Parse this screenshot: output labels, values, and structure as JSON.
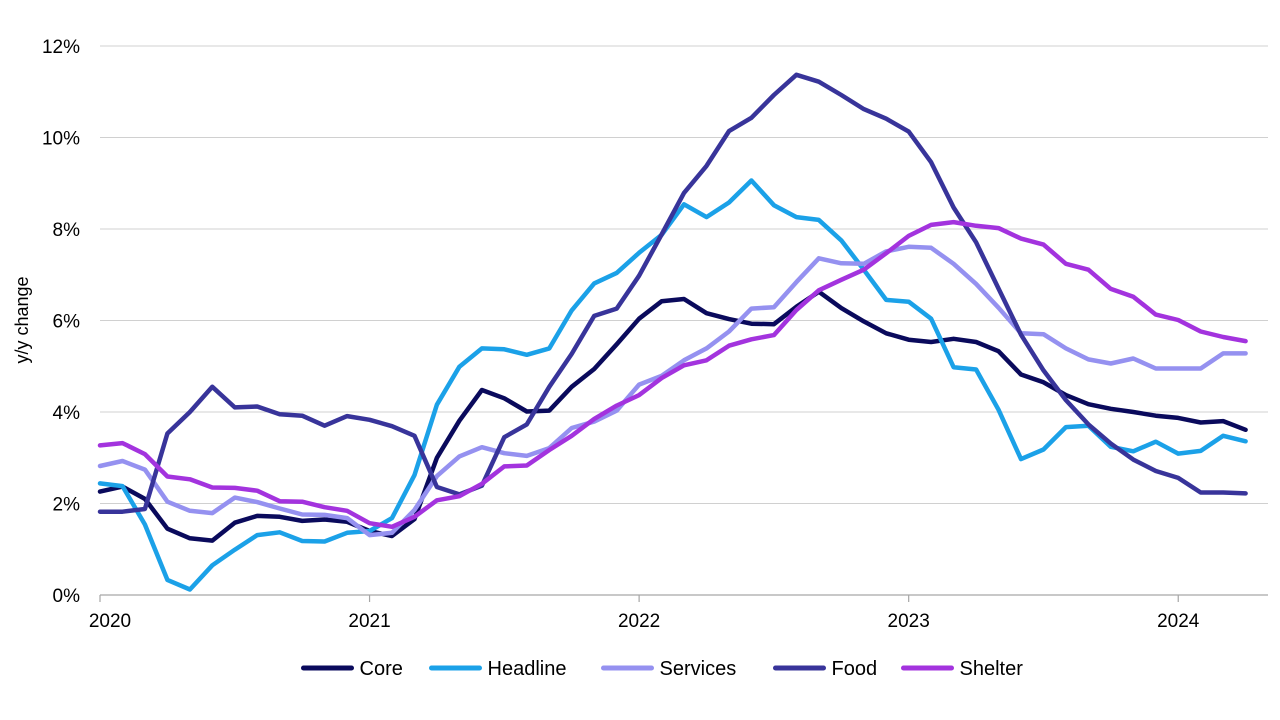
{
  "chart_data": {
    "type": "line",
    "title": "",
    "xlabel": "",
    "ylabel": "y/y change",
    "ylim": [
      0,
      12
    ],
    "yticks": [
      0,
      2,
      4,
      6,
      8,
      10,
      12
    ],
    "ytick_labels": [
      "0%",
      "2%",
      "4%",
      "6%",
      "8%",
      "10%",
      "12%"
    ],
    "xlim": [
      2020.0,
      2024.333
    ],
    "xticks": [
      2020,
      2021,
      2022,
      2023,
      2024
    ],
    "xtick_labels": [
      "2020",
      "2021",
      "2022",
      "2023",
      "2024"
    ],
    "grid": "horizontal",
    "legend_position": "bottom",
    "x_start": "2020-01",
    "x_step_months": 1,
    "series": [
      {
        "name": "Core",
        "color": "#0a0a5c",
        "values": [
          2.26,
          2.37,
          2.1,
          1.45,
          1.24,
          1.19,
          1.58,
          1.73,
          1.71,
          1.62,
          1.65,
          1.6,
          1.4,
          1.29,
          1.66,
          3.0,
          3.81,
          4.48,
          4.3,
          4.01,
          4.03,
          4.55,
          4.94,
          5.48,
          6.04,
          6.42,
          6.47,
          6.16,
          6.03,
          5.93,
          5.92,
          6.3,
          6.63,
          6.27,
          5.98,
          5.72,
          5.58,
          5.53,
          5.6,
          5.53,
          5.33,
          4.82,
          4.65,
          4.37,
          4.17,
          4.07,
          4.0,
          3.92,
          3.87,
          3.77,
          3.8,
          3.61
        ]
      },
      {
        "name": "Headline",
        "color": "#1ba1e8",
        "values": [
          2.44,
          2.38,
          1.54,
          0.33,
          0.12,
          0.65,
          0.99,
          1.31,
          1.37,
          1.18,
          1.17,
          1.36,
          1.4,
          1.68,
          2.62,
          4.16,
          4.99,
          5.39,
          5.37,
          5.25,
          5.39,
          6.22,
          6.81,
          7.04,
          7.48,
          7.87,
          8.54,
          8.26,
          8.58,
          9.06,
          8.52,
          8.26,
          8.2,
          7.75,
          7.11,
          6.45,
          6.41,
          6.04,
          4.98,
          4.93,
          4.05,
          2.97,
          3.18,
          3.67,
          3.7,
          3.24,
          3.14,
          3.35,
          3.09,
          3.15,
          3.48,
          3.36
        ]
      },
      {
        "name": "Services",
        "color": "#9591f0",
        "values": [
          2.82,
          2.93,
          2.74,
          2.04,
          1.84,
          1.79,
          2.13,
          2.03,
          1.89,
          1.76,
          1.75,
          1.68,
          1.31,
          1.36,
          1.86,
          2.6,
          3.03,
          3.23,
          3.1,
          3.04,
          3.21,
          3.65,
          3.79,
          4.03,
          4.6,
          4.79,
          5.13,
          5.39,
          5.76,
          6.26,
          6.29,
          6.84,
          7.36,
          7.25,
          7.24,
          7.51,
          7.61,
          7.59,
          7.24,
          6.8,
          6.28,
          5.72,
          5.7,
          5.39,
          5.15,
          5.06,
          5.17,
          4.95,
          4.95,
          4.95,
          5.28,
          5.28
        ]
      },
      {
        "name": "Food",
        "color": "#38349a",
        "values": [
          1.82,
          1.82,
          1.88,
          3.53,
          4.0,
          4.55,
          4.1,
          4.12,
          3.95,
          3.92,
          3.7,
          3.91,
          3.83,
          3.69,
          3.48,
          2.36,
          2.2,
          2.39,
          3.45,
          3.73,
          4.55,
          5.27,
          6.1,
          6.26,
          6.98,
          7.88,
          8.79,
          9.38,
          10.14,
          10.43,
          10.93,
          11.37,
          11.22,
          10.93,
          10.62,
          10.41,
          10.13,
          9.46,
          8.47,
          7.71,
          6.7,
          5.69,
          4.91,
          4.26,
          3.73,
          3.31,
          2.96,
          2.71,
          2.56,
          2.24,
          2.24,
          2.22
        ]
      },
      {
        "name": "Shelter",
        "color": "#a333de",
        "values": [
          3.27,
          3.32,
          3.08,
          2.59,
          2.53,
          2.35,
          2.34,
          2.28,
          2.05,
          2.04,
          1.92,
          1.84,
          1.57,
          1.49,
          1.71,
          2.07,
          2.16,
          2.43,
          2.81,
          2.83,
          3.17,
          3.48,
          3.85,
          4.14,
          4.37,
          4.74,
          5.02,
          5.13,
          5.45,
          5.59,
          5.68,
          6.23,
          6.66,
          6.89,
          7.11,
          7.47,
          7.85,
          8.09,
          8.15,
          8.07,
          8.02,
          7.79,
          7.66,
          7.24,
          7.11,
          6.69,
          6.52,
          6.13,
          6.01,
          5.76,
          5.64,
          5.55
        ]
      }
    ]
  }
}
